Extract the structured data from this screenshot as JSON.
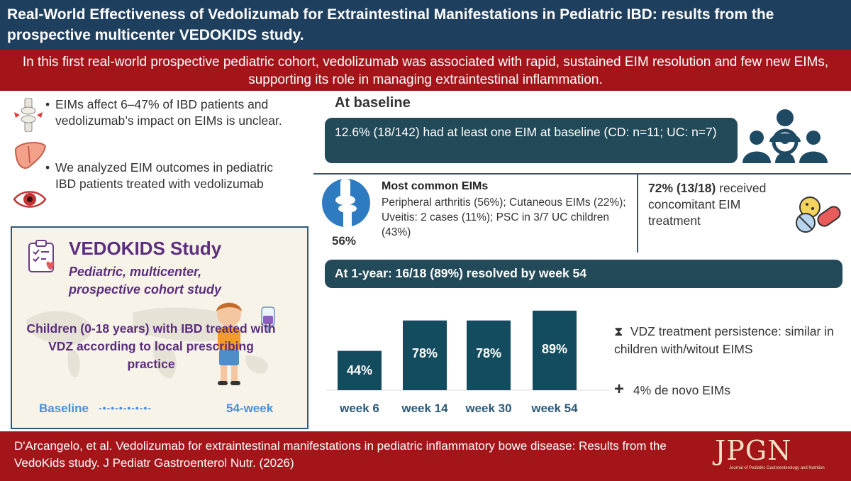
{
  "header": {
    "title": "Real-World Effectiveness of Vedolizumab for Extraintestinal Manifestations in Pediatric IBD: results from the prospective multicenter VEDOKIDS study.",
    "summary": "In this first real-world prospective pediatric cohort, vedolizumab was associated with rapid, sustained EIM resolution and few new EIMs, supporting its role in managing extraintestinal inflammation."
  },
  "background": {
    "bullets": [
      "EIMs affect 6–47% of IBD patients and vedolizumab’s impact on EIMs is unclear.",
      "We analyzed EIM outcomes in pediatric IBD patients treated with vedolizumab"
    ],
    "icons": [
      "joint-icon",
      "liver-icon",
      "eye-icon"
    ]
  },
  "study": {
    "title": "VEDOKIDS Study",
    "subtitle": "Pediatric, multicenter, prospective cohort study",
    "description": "Children (0-18 years) with IBD treated with VDZ according to local prescribing practice",
    "timeline_start": "Baseline",
    "timeline_dots": "-•-•-•-•-•-•-",
    "timeline_end": "54-week"
  },
  "baseline": {
    "heading": "At baseline",
    "summary": "12.6% (18/142) had at least one EIM at baseline (CD: n=11; UC: n=7)",
    "eim_title": "Most common EIMs",
    "eim_text": "Peripheral arthritis (56%); Cutaneous EIMs (22%); Uveitis: 2 cases (11%); PSC in 3/7 UC children (43%)",
    "arthritis_pct": "56%",
    "concomitant_bold": "72% (13/18)",
    "concomitant_rest": " received concomitant EIM treatment"
  },
  "one_year": {
    "heading": "At 1-year: 16/18 (89%) resolved by week 54",
    "persistence": "VDZ treatment persistence: similar in children with/witout EIMS",
    "de_novo": "4% de novo EIMs"
  },
  "chart_data": {
    "type": "bar",
    "title": "",
    "xlabel": "",
    "ylabel": "",
    "categories": [
      "week 6",
      "week 14",
      "week 30",
      "week 54"
    ],
    "values": [
      44,
      78,
      78,
      89
    ],
    "value_labels": [
      "44%",
      "78%",
      "78%",
      "89%"
    ],
    "ylim": [
      0,
      100
    ],
    "color": "#134b5f"
  },
  "footer": {
    "citation": "D'Arcangelo, et al. Vedolizumab for extraintestinal manifestations in pediatric inflammatory bowe disease: Results from the VedoKids study. J Pediatr Gastroenterol Nutr. (2026)",
    "logo": "JPGN",
    "logo_sub": "Journal of Pediatric Gastroenterology and Nutrition"
  },
  "colors": {
    "title_bg": "#1f3f5e",
    "red": "#a31519",
    "teal": "#234a58",
    "purple": "#5b2e7e",
    "blue": "#4b8fd6"
  }
}
